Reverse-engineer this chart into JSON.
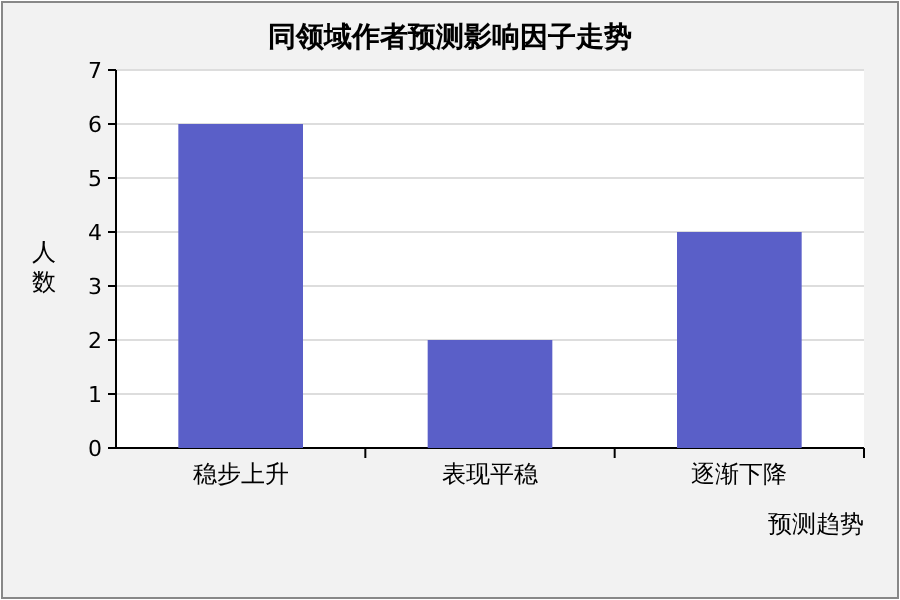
{
  "chart_data": {
    "type": "bar",
    "title": "同领域作者预测影响因子走势",
    "xlabel": "预测趋势",
    "ylabel": "人数",
    "categories": [
      "稳步上升",
      "表现平稳",
      "逐渐下降"
    ],
    "values": [
      6,
      2,
      4
    ],
    "color": "#5a5fc8",
    "ylim": [
      0,
      7
    ],
    "yticks": [
      0,
      1,
      2,
      3,
      4,
      5,
      6,
      7
    ],
    "grid": "y"
  }
}
